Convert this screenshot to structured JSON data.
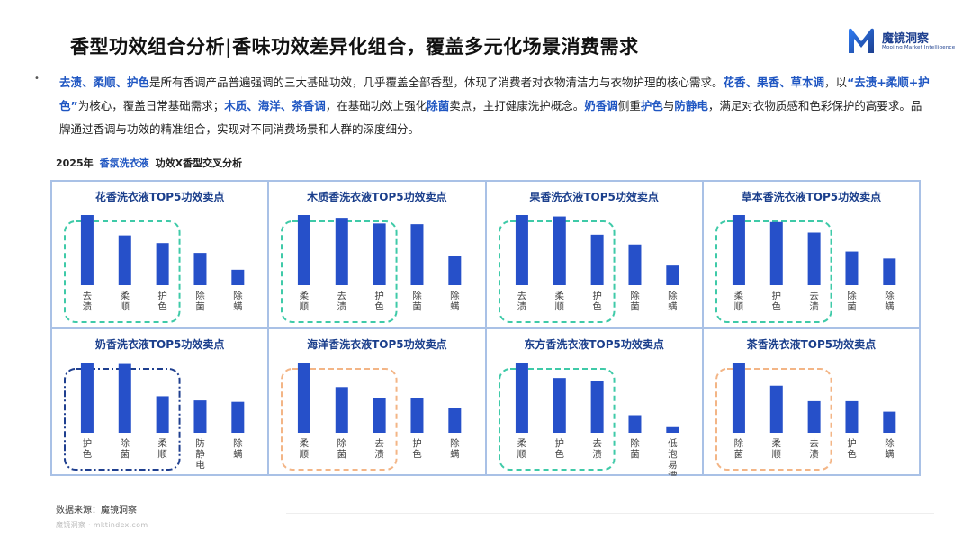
{
  "header": {
    "title": "香型功效组合分析|香味功效差异化组合，覆盖多元化场景消费需求",
    "logo_name": "魔镜洞察",
    "logo_sub": "Moojing Market Intelligence"
  },
  "summary": {
    "bullet": "•",
    "segments": [
      {
        "t": "去渍、柔顺、护色",
        "hl": true
      },
      {
        "t": "是所有香调产品普遍强调的三大基础功效，几乎覆盖全部香型，体现了消费者对衣物清洁力与衣物护理的核心需求。",
        "hl": false
      },
      {
        "t": "花香、果香、草本调",
        "hl": true
      },
      {
        "t": "，以",
        "hl": false
      },
      {
        "t": "“去渍+柔顺+护色”",
        "hl": true
      },
      {
        "t": "为核心，覆盖日常基础需求；",
        "hl": false
      },
      {
        "t": "木质、海洋、茶香调",
        "hl": true
      },
      {
        "t": "，在基础功效上强化",
        "hl": false
      },
      {
        "t": "除菌",
        "hl": true
      },
      {
        "t": "卖点，主打健康洗护概念。",
        "hl": false
      },
      {
        "t": "奶香调",
        "hl": true
      },
      {
        "t": "侧重",
        "hl": false
      },
      {
        "t": "护色",
        "hl": true
      },
      {
        "t": "与",
        "hl": false
      },
      {
        "t": "防静电",
        "hl": true
      },
      {
        "t": "，满足对衣物质感和色彩保护的高要求。品牌通过香调与功效的精准组合，实现对不同消费场景和人群的深度细分。",
        "hl": false
      }
    ]
  },
  "section_label": {
    "year": "2025年",
    "category": "香氛洗衣液",
    "topic": "功效X香型交叉分析"
  },
  "colors": {
    "bar": "#2650c9",
    "title_text": "#1b3f8c",
    "highlight": "#1f56c2",
    "border": "#a9c1e6",
    "box_teal": "#3fcaa8",
    "box_navy": "#1f3f8f",
    "box_peach": "#f3b586"
  },
  "chart_data": [
    {
      "type": "bar",
      "title": "花香洗衣液TOP5功效卖点",
      "categories": [
        "去渍",
        "柔顺",
        "护色",
        "除菌",
        "除螨"
      ],
      "values": [
        100,
        71,
        60,
        46,
        22
      ],
      "highlight_count": 3,
      "box_style": "teal"
    },
    {
      "type": "bar",
      "title": "木质香洗衣液TOP5功效卖点",
      "categories": [
        "柔顺",
        "去渍",
        "护色",
        "除菌",
        "除螨"
      ],
      "values": [
        100,
        96,
        88,
        87,
        42
      ],
      "highlight_count": 3,
      "box_style": "teal"
    },
    {
      "type": "bar",
      "title": "果香洗衣液TOP5功效卖点",
      "categories": [
        "去渍",
        "柔顺",
        "护色",
        "除菌",
        "除螨"
      ],
      "values": [
        100,
        98,
        72,
        58,
        28
      ],
      "highlight_count": 3,
      "box_style": "teal"
    },
    {
      "type": "bar",
      "title": "草本香洗衣液TOP5功效卖点",
      "categories": [
        "柔顺",
        "护色",
        "去渍",
        "除菌",
        "除螨"
      ],
      "values": [
        100,
        90,
        75,
        48,
        38
      ],
      "highlight_count": 3,
      "box_style": "teal"
    },
    {
      "type": "bar",
      "title": "奶香洗衣液TOP5功效卖点",
      "categories": [
        "护色",
        "除菌",
        "柔顺",
        "防静电",
        "除螨"
      ],
      "values": [
        100,
        98,
        52,
        46,
        44
      ],
      "highlight_count": 3,
      "box_style": "navy"
    },
    {
      "type": "bar",
      "title": "海洋香洗衣液TOP5功效卖点",
      "categories": [
        "柔顺",
        "除菌",
        "去渍",
        "护色",
        "除螨"
      ],
      "values": [
        100,
        65,
        50,
        50,
        35
      ],
      "highlight_count": 3,
      "box_style": "peach"
    },
    {
      "type": "bar",
      "title": "东方香洗衣液TOP5功效卖点",
      "categories": [
        "柔顺",
        "护色",
        "去渍",
        "除菌",
        "低泡易漂"
      ],
      "values": [
        100,
        78,
        74,
        25,
        8
      ],
      "highlight_count": 3,
      "box_style": "teal"
    },
    {
      "type": "bar",
      "title": "茶香洗衣液TOP5功效卖点",
      "categories": [
        "除菌",
        "柔顺",
        "去渍",
        "护色",
        "除螨"
      ],
      "values": [
        100,
        67,
        45,
        45,
        30
      ],
      "highlight_count": 3,
      "box_style": "peach"
    }
  ],
  "footer": {
    "source": "数据来源：魔镜洞察",
    "watermark": "魔镜洞察 · mktindex.com"
  }
}
